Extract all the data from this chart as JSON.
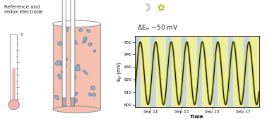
{
  "title_text": "Reference and\nredox electrode",
  "ylabel": "E$_H$ (mV)",
  "xlabel": "Time",
  "yticks": [
    600,
    610,
    620,
    630,
    640,
    650
  ],
  "xtick_labels": [
    "Sep 11",
    "Sep 13",
    "Sep 15",
    "Sep 17"
  ],
  "y_min": 598,
  "y_max": 655,
  "start_day": 10,
  "end_day": 18,
  "amplitude": 25,
  "mid_value": 625,
  "night_color": "#c5d5e5",
  "day_color": "#eeeea0",
  "line_color": "#111111",
  "line_color2": "#c8c820",
  "bg_color": "#ffffff",
  "thermometer_fill": "#f5b0b0",
  "soil_color": "#f5c0b0",
  "stone_color": "#90afc0",
  "stone_edge": "#507090"
}
